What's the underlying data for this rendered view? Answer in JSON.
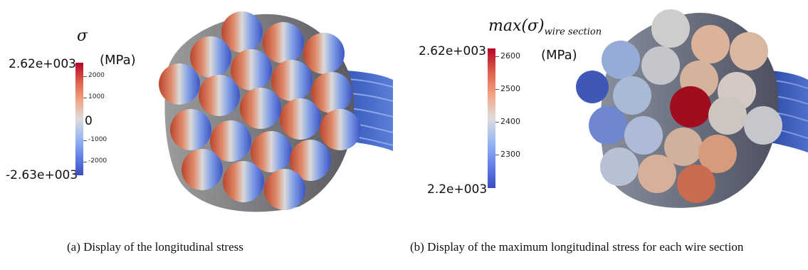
{
  "panel_a": {
    "legend": {
      "symbol": "σ",
      "unit": "(MPa)",
      "max_label": "2.62e+003",
      "min_label": "-2.63e+003",
      "mid_label": "0",
      "ticks": [
        "2000",
        "1000",
        "-1000",
        "-2000"
      ],
      "colormap": [
        "#b40426",
        "#dd5f4b",
        "#f4a383",
        "#dddcdc",
        "#9ab9f5",
        "#6282ea",
        "#3b4cc0"
      ]
    },
    "caption": "(a) Display of the longitudinal stress"
  },
  "panel_b": {
    "legend": {
      "title": "max(σ)",
      "title_sub": "wire section",
      "unit": "(MPa)",
      "max_label": "2.62e+003",
      "min_label": "2.2e+003",
      "ticks": [
        "2600",
        "2500",
        "2400",
        "2300"
      ],
      "colormap": [
        "#b40426",
        "#dd5f4b",
        "#f4a383",
        "#dddcdc",
        "#9ab9f5",
        "#6282ea",
        "#3b4cc0"
      ]
    },
    "caption": "(b) Display of the maximum longitudinal stress for each wire section"
  }
}
